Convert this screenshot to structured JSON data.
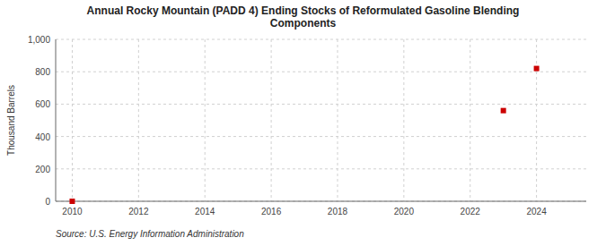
{
  "chart_data": {
    "type": "scatter",
    "title": "Annual Rocky Mountain (PADD 4) Ending Stocks of Reformulated Gasoline Blending\nComponents",
    "ylabel": "Thousand Barrels",
    "source": "Source: U.S. Energy Information Administration",
    "x": [
      2010,
      2023,
      2024
    ],
    "values": [
      0,
      560,
      820
    ],
    "color": "#cc0000",
    "marker": "square",
    "xlim": [
      2009.5,
      2025.5
    ],
    "ylim": [
      0,
      1000
    ],
    "xticks": [
      2010,
      2012,
      2014,
      2016,
      2018,
      2020,
      2022,
      2024
    ],
    "yticks": [
      0,
      200,
      400,
      600,
      800,
      {
        "value": 1000,
        "label": "1,000"
      }
    ],
    "grid": true
  }
}
